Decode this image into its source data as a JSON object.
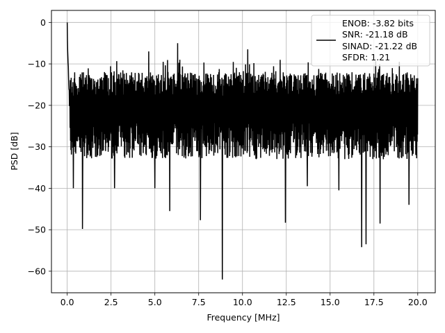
{
  "chart_data": {
    "type": "line",
    "xlabel": "Frequency [MHz]",
    "ylabel": "PSD [dB]",
    "xlim": [
      -0.9,
      21.0
    ],
    "ylim": [
      -65.2,
      2.9
    ],
    "xticks": [
      0.0,
      2.5,
      5.0,
      7.5,
      10.0,
      12.5,
      15.0,
      17.5,
      20.0
    ],
    "xtick_labels": [
      "0.0",
      "2.5",
      "5.0",
      "7.5",
      "10.0",
      "12.5",
      "15.0",
      "17.5",
      "20.0"
    ],
    "yticks": [
      0,
      -10,
      -20,
      -30,
      -40,
      -50,
      -60
    ],
    "ytick_labels": [
      "0",
      "−10",
      "−20",
      "−30",
      "−40",
      "−50",
      "−60"
    ],
    "grid": true,
    "legend_position": "top-right",
    "legend_lines": [
      "ENOB: -3.82 bits",
      "SNR: -21.18 dB",
      "SINAD: -21.22 dB",
      "SFDR: 1.21"
    ],
    "series_color": "#000000",
    "noise_band": {
      "x_start": 0.0,
      "x_end": 20.0,
      "upper_typical": -12.0,
      "lower_typical": -30.0,
      "median": -20.0
    },
    "peak": {
      "x": 0.0,
      "y": 0.0
    },
    "dips": [
      {
        "x": 0.87,
        "y": -49.8
      },
      {
        "x": 0.35,
        "y": -40.0
      },
      {
        "x": 2.7,
        "y": -40.0
      },
      {
        "x": 5.0,
        "y": -40.0
      },
      {
        "x": 5.85,
        "y": -45.5
      },
      {
        "x": 7.6,
        "y": -47.7
      },
      {
        "x": 8.85,
        "y": -62.0
      },
      {
        "x": 12.45,
        "y": -48.3
      },
      {
        "x": 13.7,
        "y": -39.5
      },
      {
        "x": 15.5,
        "y": -40.5
      },
      {
        "x": 16.8,
        "y": -54.2
      },
      {
        "x": 17.05,
        "y": -53.5
      },
      {
        "x": 17.85,
        "y": -48.5
      },
      {
        "x": 19.5,
        "y": -44.0
      }
    ],
    "high_spikes": [
      {
        "x": 4.65,
        "y": -7.0
      },
      {
        "x": 6.3,
        "y": -5.0
      },
      {
        "x": 10.3,
        "y": -6.5
      }
    ]
  }
}
